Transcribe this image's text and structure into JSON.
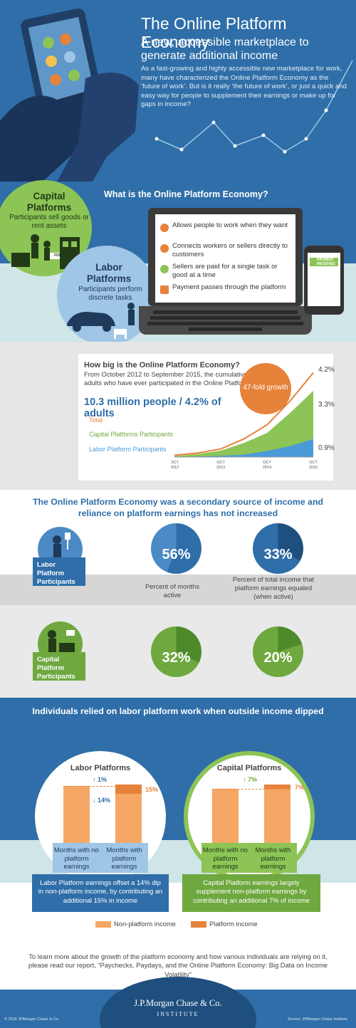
{
  "header": {
    "title": "The Online Platform Economy",
    "subtitle": "A new, accessible marketplace to generate additional income",
    "intro": "As a fast-growing and highly accessible new marketplace for work, many have characterized the Online Platform Economy as the ‘future of work’. But is it really ‘the future of work’, or just a quick and easy way for people to supplement their earnings or make up for gaps in income?"
  },
  "what": {
    "title": "What is the Online Platform Economy?",
    "capital": {
      "title": "Capital Platforms",
      "desc": "Participants sell goods or rent assets",
      "sign": "FOR RENT"
    },
    "labor": {
      "title": "Labor Platforms",
      "desc": "Participants perform discrete tasks"
    },
    "features": [
      {
        "icon": "handshake-icon",
        "text": "Allows people to work when they want"
      },
      {
        "icon": "clock-icon",
        "text": "Connects workers or sellers directly to customers"
      },
      {
        "icon": "money-icon",
        "text": "Sellers are paid for a single task or good at a time"
      },
      {
        "icon": "card-icon",
        "text": "Payment passes through the platform"
      }
    ],
    "phone_badge": "PAYMENT RECEIVED"
  },
  "how_big": {
    "title": "How big is the Online Platform Economy?",
    "desc": "From October 2012 to September 2015, the cumulative percent of adults who have ever participated in the Online Platform Economy:",
    "stat": "10.3 million people / 4.2% of adults",
    "growth": "47-fold growth",
    "right_labels": [
      "4.2%",
      "3.3%",
      "0.9%"
    ]
  },
  "chart_data": {
    "type": "area",
    "title": "How big is the Online Platform Economy?",
    "x_ticks": [
      "OCT 2012",
      "OCT 2013",
      "OCT 2014",
      "OCT 2015"
    ],
    "y_unit": "%",
    "series": [
      {
        "name": "Total",
        "color": "#e7823a",
        "x": [
          "2012-10",
          "2013-04",
          "2013-10",
          "2014-04",
          "2014-10",
          "2015-04",
          "2015-09"
        ],
        "values": [
          0.09,
          0.2,
          0.4,
          0.9,
          1.6,
          2.8,
          4.2
        ]
      },
      {
        "name": "Capital Platforms Participants",
        "color": "#8dc456",
        "x": [
          "2012-10",
          "2013-04",
          "2013-10",
          "2014-04",
          "2014-10",
          "2015-04",
          "2015-09"
        ],
        "values": [
          0.05,
          0.15,
          0.32,
          0.7,
          1.2,
          2.2,
          3.3
        ]
      },
      {
        "name": "Labor Platform Participants",
        "color": "#4b9ad8",
        "x": [
          "2012-10",
          "2013-04",
          "2013-10",
          "2014-04",
          "2014-10",
          "2015-04",
          "2015-09"
        ],
        "values": [
          0.01,
          0.03,
          0.06,
          0.12,
          0.3,
          0.55,
          0.9
        ]
      }
    ],
    "end_labels": [
      "4.2%",
      "3.3%",
      "0.9%"
    ],
    "annotation": "47-fold growth"
  },
  "secondary": {
    "title": "The Online Platform Economy was a secondary source of income and reliance on platform earnings has not increased",
    "labor_label": "Labor Platform Participants",
    "capital_label": "Capital Platform Participants",
    "caption_active": "Percent of months active",
    "caption_income": "Percent of total income that platform earnings equaled (when active)",
    "labor_active": "56%",
    "labor_income": "33%",
    "capital_active": "32%",
    "capital_income": "20%",
    "labor_active_val": 56,
    "labor_income_val": 33,
    "capital_active_val": 32,
    "capital_income_val": 20
  },
  "reliance": {
    "title": "Individuals relied on labor platform work when outside income dipped",
    "labor": {
      "name": "Labor Platforms",
      "up": "↑ 1%",
      "down": "↓ 14%",
      "platform_pct": "15%",
      "col1": "Months with no platform earnings",
      "col2": "Months with platform earnings",
      "note": "Labor Platform earnings offset a 14% dip in non-platform income, by contributing an additional 15% in income"
    },
    "capital": {
      "name": "Capital Platforms",
      "up": "↑ 7%",
      "platform_pct": "7%",
      "col1": "Months with no platform earnings",
      "col2": "Months with platform earnings",
      "note": "Capital Platform earnings largely supplement non-platform earnings by contributing an additional 7% of income"
    },
    "legend": [
      "Non-platform income",
      "Platform income"
    ],
    "colors": {
      "non_platform": "#f5a766",
      "platform": "#e7823a"
    }
  },
  "footer": {
    "text": "To learn more about the growth of the platform economy and how various individuals are relying on it, please read our report, “Paychecks, Paydays, and the Online Platform Economy: Big Data on Income Volatility”",
    "logo": "J.P.Morgan Chase & Co.",
    "logo_sub": "INSTITUTE",
    "copyright": "© 2016 JPMorgan Chase & Co.",
    "source": "Source: JPMorgan Chase Institute"
  },
  "colors": {
    "blue": "#2f6ea8",
    "green": "#8dc456",
    "orange": "#e7823a",
    "light_blue": "#9fc6e6",
    "teal_band": "#cfe5e7"
  }
}
